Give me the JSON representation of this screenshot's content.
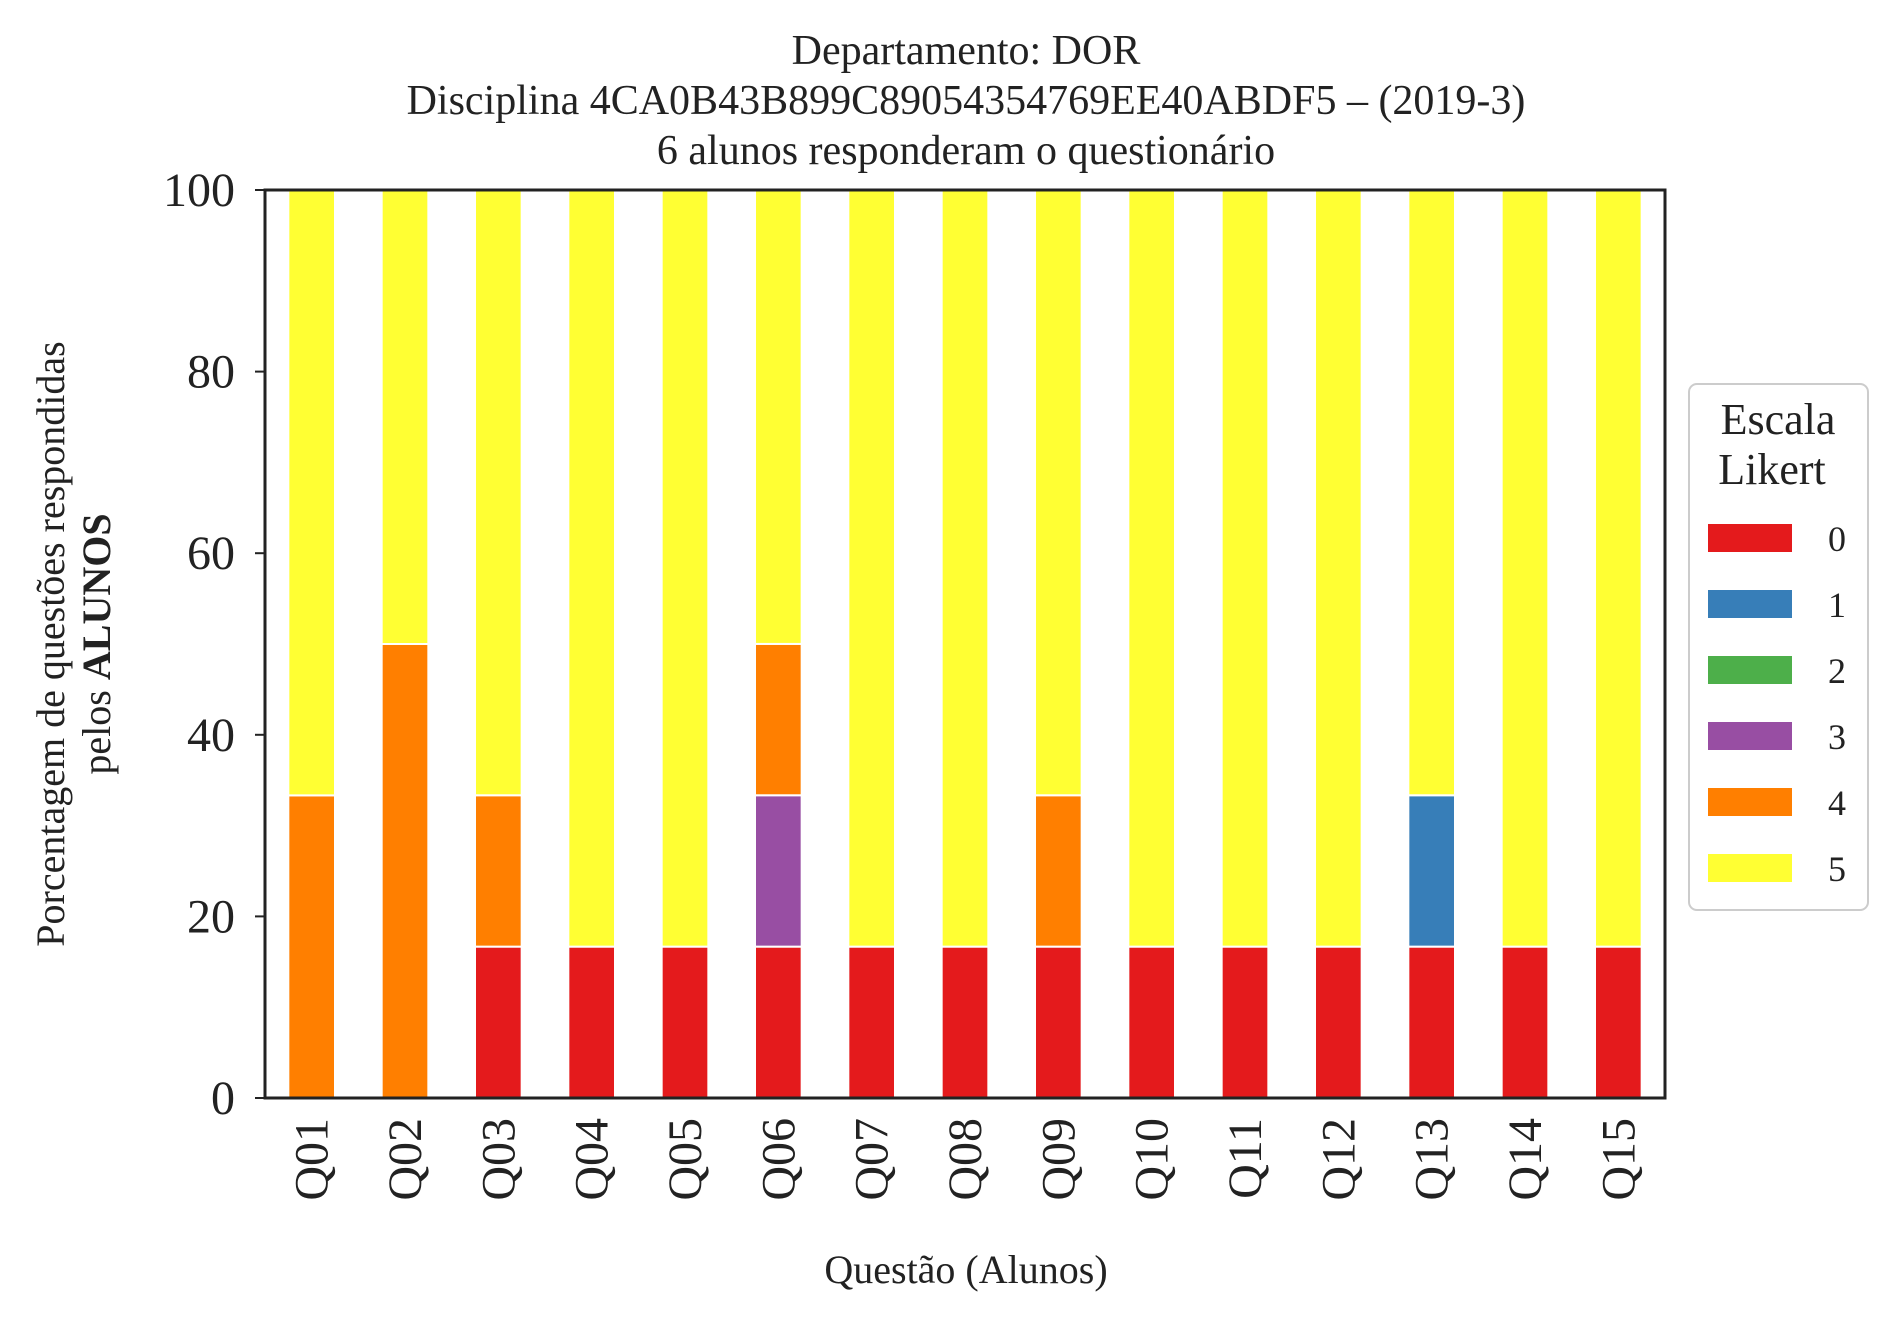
{
  "chart_data": {
    "type": "bar",
    "stacked": true,
    "title_lines": [
      "Departamento: DOR",
      "Disciplina 4CA0B43B899C89054354769EE40ABDF5 – (2019-3)",
      "6 alunos responderam o questionário"
    ],
    "xlabel": "Questão (Alunos)",
    "ylabel_line1": "Porcentagem de questões respondidas",
    "ylabel_line2_prefix": "pelos ",
    "ylabel_line2_bold": "ALUNOS",
    "ylim": [
      0,
      100
    ],
    "yticks": [
      0,
      20,
      40,
      60,
      80,
      100
    ],
    "categories": [
      "Q01",
      "Q02",
      "Q03",
      "Q04",
      "Q05",
      "Q06",
      "Q07",
      "Q08",
      "Q09",
      "Q10",
      "Q11",
      "Q12",
      "Q13",
      "Q14",
      "Q15"
    ],
    "series": [
      {
        "name": "0",
        "color": "#e41a1c",
        "values": [
          0,
          0,
          16.67,
          16.67,
          16.67,
          16.67,
          16.67,
          16.67,
          16.67,
          16.67,
          16.67,
          16.67,
          16.67,
          16.67,
          16.67
        ]
      },
      {
        "name": "1",
        "color": "#377eb8",
        "values": [
          0,
          0,
          0,
          0,
          0,
          0,
          0,
          0,
          0,
          0,
          0,
          0,
          16.67,
          0,
          0
        ]
      },
      {
        "name": "2",
        "color": "#4daf4a",
        "values": [
          0,
          0,
          0,
          0,
          0,
          0,
          0,
          0,
          0,
          0,
          0,
          0,
          0,
          0,
          0
        ]
      },
      {
        "name": "3",
        "color": "#984ea3",
        "values": [
          0,
          0,
          0,
          0,
          0,
          16.67,
          0,
          0,
          0,
          0,
          0,
          0,
          0,
          0,
          0
        ]
      },
      {
        "name": "4",
        "color": "#ff7f00",
        "values": [
          33.33,
          50,
          16.67,
          0,
          0,
          16.67,
          0,
          0,
          16.67,
          0,
          0,
          0,
          0,
          0,
          0
        ]
      },
      {
        "name": "5",
        "color": "#ffff33",
        "values": [
          66.67,
          50,
          66.67,
          83.33,
          83.33,
          50,
          83.33,
          83.33,
          66.67,
          83.33,
          83.33,
          83.33,
          66.67,
          83.33,
          83.33
        ]
      }
    ],
    "legend": {
      "title_lines": [
        "Escala",
        "Likert"
      ],
      "placement": "right"
    },
    "grid": false
  }
}
